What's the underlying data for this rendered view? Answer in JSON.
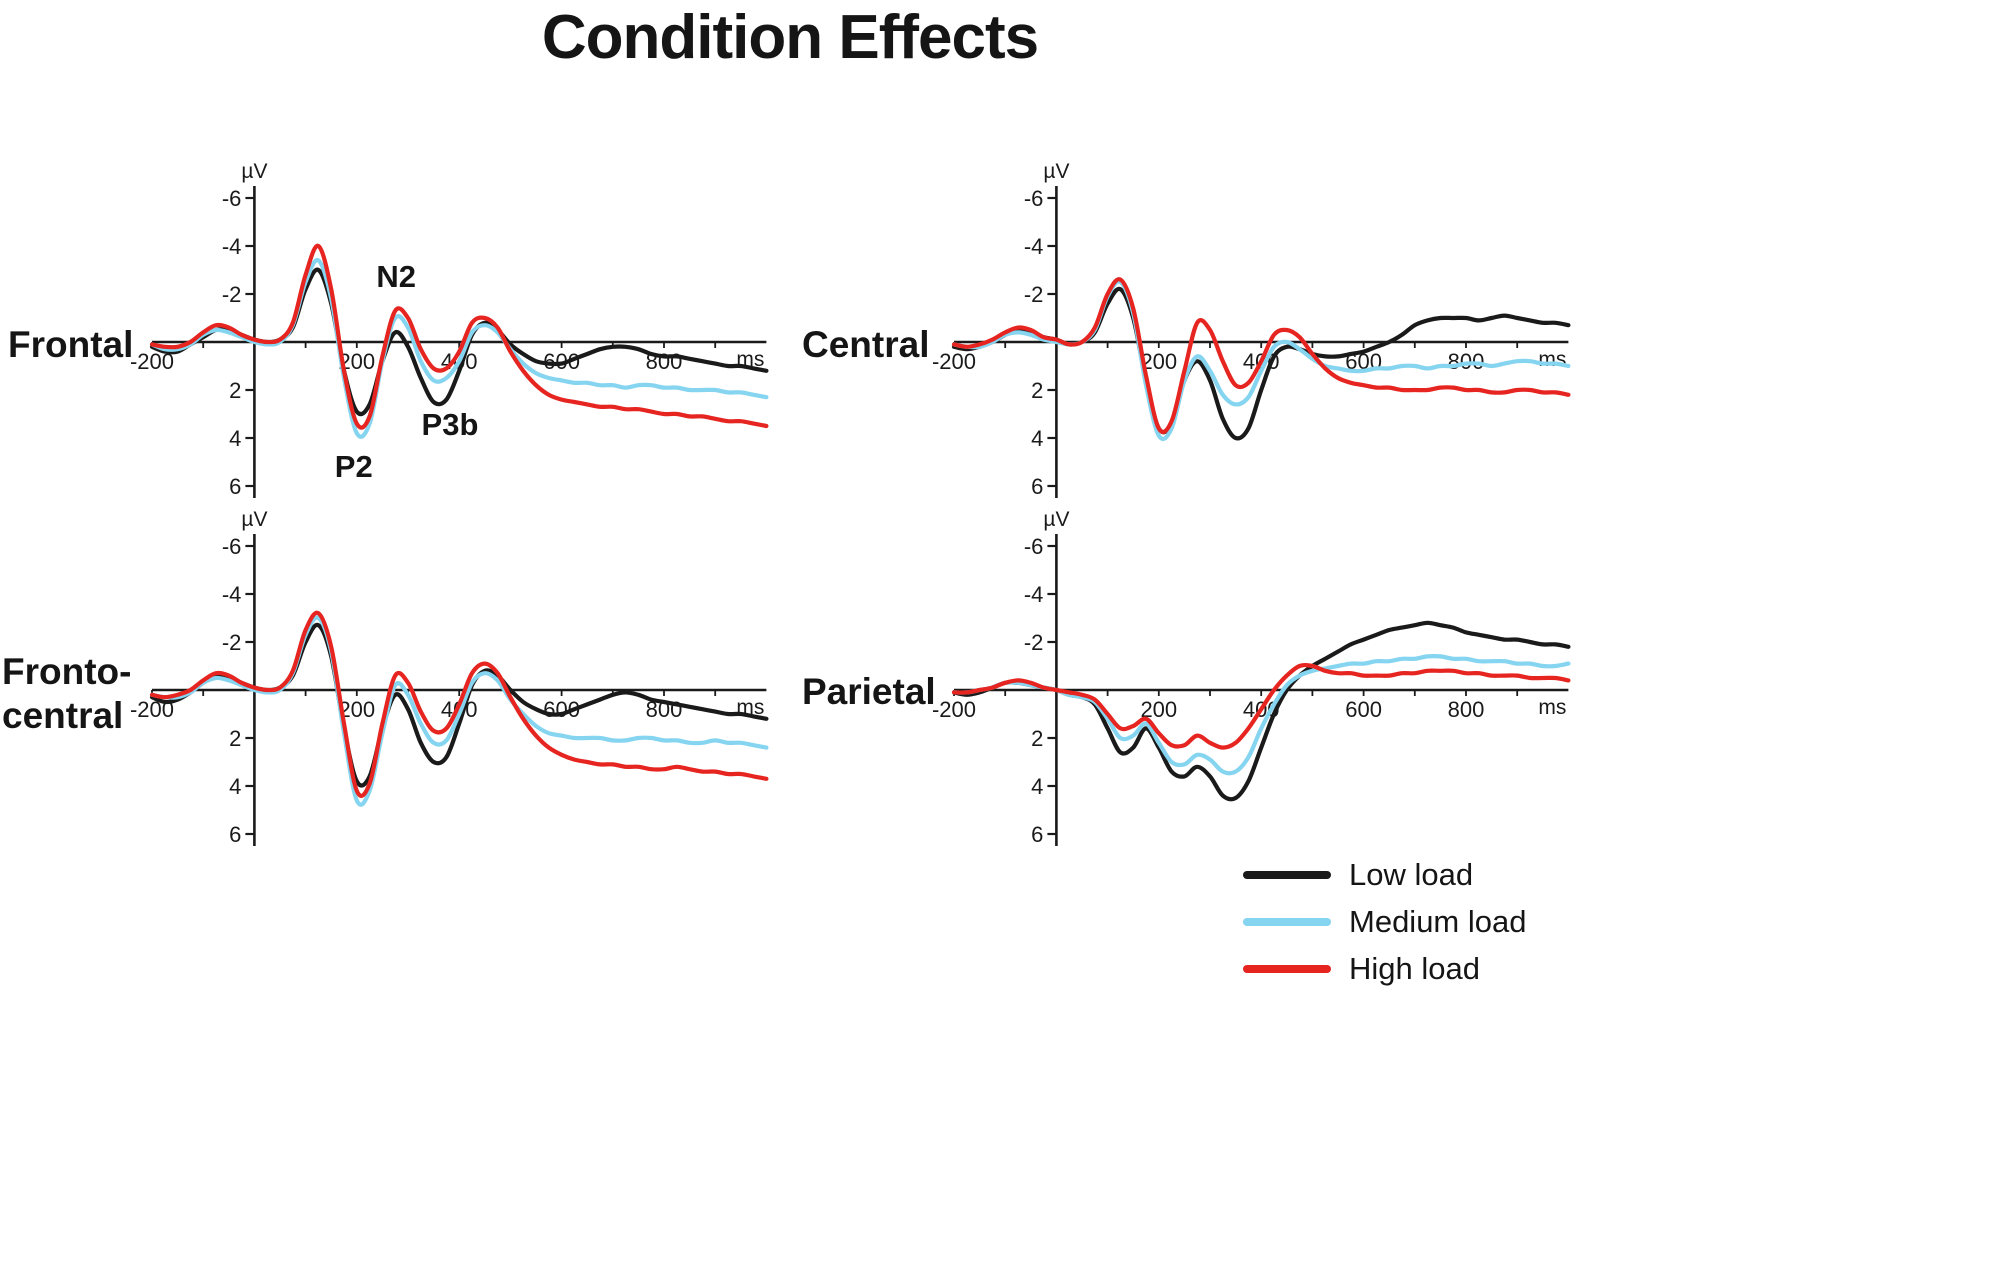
{
  "title": "Condition Effects",
  "axes": {
    "y_unit": "µV",
    "x_unit": "ms",
    "y_ticks": [
      -6,
      -4,
      -2,
      2,
      4,
      6
    ],
    "x_tick_labels": [
      200,
      400,
      600,
      800
    ],
    "x_start_label": "-200",
    "x_min": -200,
    "x_max": 1000,
    "y_min": -6,
    "y_max": 6,
    "y_inverted_note": "negative microvolts plotted upward",
    "axis_color": "#1a1a1a"
  },
  "legend": [
    {
      "label": "Low load",
      "color": "#1a1a1a"
    },
    {
      "label": "Medium load",
      "color": "#85d4f0"
    },
    {
      "label": "High load",
      "color": "#e62420"
    }
  ],
  "chart_data": {
    "type": "line",
    "title": "Condition Effects",
    "x_label": "ms",
    "y_label": "µV",
    "ylim": [
      -6,
      6
    ],
    "xlim": [
      -200,
      1000
    ],
    "grid": false,
    "legend_position": "bottom-right",
    "x_ms": [
      -200,
      -175,
      -150,
      -125,
      -100,
      -75,
      -50,
      -25,
      0,
      25,
      50,
      75,
      100,
      125,
      150,
      175,
      200,
      225,
      250,
      275,
      300,
      325,
      350,
      375,
      400,
      425,
      450,
      475,
      500,
      525,
      550,
      575,
      600,
      625,
      650,
      675,
      700,
      725,
      750,
      775,
      800,
      825,
      850,
      875,
      900,
      925,
      950,
      975,
      1000
    ],
    "panels": [
      {
        "id": "frontal",
        "label": "Frontal",
        "annotations": [
          {
            "text": "N2",
            "ms": 277,
            "uv": -2.7
          },
          {
            "text": "P3b",
            "ms": 382,
            "uv": 3.45
          },
          {
            "text": "P2",
            "ms": 194,
            "uv": 5.2
          }
        ],
        "series": [
          {
            "name": "Low load",
            "color": "#1a1a1a",
            "values": [
              0.2,
              0.4,
              0.4,
              0.1,
              -0.2,
              -0.5,
              -0.5,
              -0.3,
              -0.1,
              0.0,
              -0.1,
              -0.6,
              -2.2,
              -3.0,
              -1.6,
              1.2,
              2.9,
              2.6,
              0.8,
              -0.4,
              0.2,
              1.5,
              2.5,
              2.4,
              1.2,
              -0.3,
              -0.8,
              -0.5,
              0.1,
              0.5,
              0.8,
              0.9,
              0.9,
              0.7,
              0.5,
              0.3,
              0.2,
              0.2,
              0.3,
              0.5,
              0.6,
              0.6,
              0.7,
              0.8,
              0.9,
              1.0,
              1.0,
              1.1,
              1.2
            ]
          },
          {
            "name": "Medium load",
            "color": "#85d4f0",
            "values": [
              0.1,
              0.3,
              0.3,
              0.1,
              -0.3,
              -0.5,
              -0.4,
              -0.2,
              0.0,
              0.1,
              0.0,
              -0.7,
              -2.5,
              -3.4,
              -1.8,
              1.5,
              3.8,
              3.4,
              0.8,
              -1.0,
              -0.6,
              0.8,
              1.6,
              1.5,
              0.8,
              -0.4,
              -0.7,
              -0.4,
              0.3,
              0.9,
              1.3,
              1.5,
              1.6,
              1.7,
              1.7,
              1.8,
              1.8,
              1.9,
              1.8,
              1.8,
              1.9,
              1.9,
              2.0,
              2.0,
              2.0,
              2.1,
              2.1,
              2.2,
              2.3
            ]
          },
          {
            "name": "High load",
            "color": "#e62420",
            "values": [
              0.1,
              0.2,
              0.2,
              0.0,
              -0.4,
              -0.7,
              -0.6,
              -0.3,
              -0.1,
              0.0,
              -0.1,
              -0.8,
              -2.8,
              -4.0,
              -2.2,
              1.2,
              3.4,
              3.1,
              0.6,
              -1.3,
              -1.0,
              0.3,
              1.1,
              1.1,
              0.4,
              -0.8,
              -1.0,
              -0.6,
              0.4,
              1.2,
              1.8,
              2.2,
              2.4,
              2.5,
              2.6,
              2.7,
              2.7,
              2.8,
              2.8,
              2.9,
              3.0,
              3.0,
              3.1,
              3.1,
              3.2,
              3.3,
              3.3,
              3.4,
              3.5
            ]
          }
        ]
      },
      {
        "id": "central",
        "label": "Central",
        "annotations": [],
        "series": [
          {
            "name": "Low load",
            "color": "#1a1a1a",
            "values": [
              0.2,
              0.3,
              0.2,
              0.0,
              -0.3,
              -0.5,
              -0.4,
              -0.2,
              -0.1,
              0.1,
              0.0,
              -0.4,
              -1.6,
              -2.2,
              -1.0,
              1.6,
              3.6,
              3.4,
              1.6,
              0.8,
              1.6,
              3.2,
              4.0,
              3.6,
              2.0,
              0.6,
              0.2,
              0.3,
              0.5,
              0.6,
              0.6,
              0.5,
              0.4,
              0.2,
              0.0,
              -0.3,
              -0.7,
              -0.9,
              -1.0,
              -1.0,
              -1.0,
              -0.9,
              -1.0,
              -1.1,
              -1.0,
              -0.9,
              -0.8,
              -0.8,
              -0.7
            ]
          },
          {
            "name": "Medium load",
            "color": "#85d4f0",
            "values": [
              0.1,
              0.2,
              0.2,
              0.0,
              -0.3,
              -0.4,
              -0.3,
              -0.1,
              0.0,
              0.1,
              0.0,
              -0.5,
              -1.9,
              -2.5,
              -1.2,
              1.8,
              3.9,
              3.6,
              1.6,
              0.6,
              1.2,
              2.2,
              2.6,
              2.3,
              1.2,
              0.2,
              0.0,
              0.3,
              0.7,
              1.0,
              1.1,
              1.2,
              1.2,
              1.1,
              1.1,
              1.0,
              1.0,
              1.1,
              1.0,
              1.0,
              0.9,
              0.9,
              1.0,
              0.9,
              0.8,
              0.8,
              0.9,
              0.9,
              1.0
            ]
          },
          {
            "name": "High load",
            "color": "#e62420",
            "values": [
              0.1,
              0.2,
              0.1,
              -0.1,
              -0.4,
              -0.6,
              -0.5,
              -0.2,
              -0.1,
              0.1,
              0.0,
              -0.6,
              -2.0,
              -2.6,
              -1.4,
              1.4,
              3.6,
              3.3,
              1.2,
              -0.8,
              -0.5,
              0.8,
              1.8,
              1.7,
              0.8,
              -0.3,
              -0.5,
              -0.2,
              0.5,
              1.1,
              1.5,
              1.7,
              1.8,
              1.9,
              1.9,
              2.0,
              2.0,
              2.0,
              1.9,
              1.9,
              2.0,
              2.0,
              2.1,
              2.1,
              2.0,
              2.0,
              2.1,
              2.1,
              2.2
            ]
          }
        ]
      },
      {
        "id": "fronto-central",
        "label": "Fronto-\ncentral",
        "annotations": [],
        "series": [
          {
            "name": "Low load",
            "color": "#1a1a1a",
            "values": [
              0.3,
              0.5,
              0.4,
              0.1,
              -0.3,
              -0.6,
              -0.5,
              -0.3,
              -0.1,
              0.0,
              -0.1,
              -0.6,
              -2.0,
              -2.7,
              -1.4,
              1.6,
              3.8,
              3.6,
              1.6,
              0.2,
              0.8,
              2.2,
              3.0,
              2.8,
              1.4,
              -0.2,
              -0.8,
              -0.6,
              0.0,
              0.5,
              0.8,
              1.0,
              1.0,
              0.8,
              0.6,
              0.4,
              0.2,
              0.1,
              0.2,
              0.4,
              0.5,
              0.6,
              0.7,
              0.8,
              0.9,
              1.0,
              1.0,
              1.1,
              1.2
            ]
          },
          {
            "name": "Medium load",
            "color": "#85d4f0",
            "values": [
              0.2,
              0.3,
              0.3,
              0.1,
              -0.3,
              -0.5,
              -0.4,
              -0.2,
              0.0,
              0.1,
              0.0,
              -0.7,
              -2.3,
              -3.0,
              -1.6,
              1.8,
              4.6,
              4.2,
              1.8,
              -0.2,
              0.2,
              1.4,
              2.2,
              2.1,
              1.0,
              -0.3,
              -0.7,
              -0.4,
              0.4,
              1.0,
              1.5,
              1.8,
              1.9,
              2.0,
              2.0,
              2.0,
              2.1,
              2.1,
              2.0,
              2.0,
              2.1,
              2.1,
              2.2,
              2.2,
              2.1,
              2.2,
              2.2,
              2.3,
              2.4
            ]
          },
          {
            "name": "High load",
            "color": "#e62420",
            "values": [
              0.2,
              0.3,
              0.2,
              0.0,
              -0.4,
              -0.7,
              -0.6,
              -0.3,
              -0.1,
              0.0,
              -0.1,
              -0.8,
              -2.5,
              -3.2,
              -1.8,
              1.4,
              4.2,
              3.9,
              1.4,
              -0.6,
              -0.3,
              0.9,
              1.7,
              1.6,
              0.6,
              -0.7,
              -1.1,
              -0.7,
              0.3,
              1.2,
              1.9,
              2.4,
              2.7,
              2.9,
              3.0,
              3.1,
              3.1,
              3.2,
              3.2,
              3.3,
              3.3,
              3.2,
              3.3,
              3.4,
              3.4,
              3.5,
              3.5,
              3.6,
              3.7
            ]
          }
        ]
      },
      {
        "id": "parietal",
        "label": "Parietal",
        "annotations": [],
        "series": [
          {
            "name": "Low load",
            "color": "#1a1a1a",
            "values": [
              0.1,
              0.2,
              0.1,
              -0.1,
              -0.3,
              -0.3,
              -0.2,
              -0.1,
              0.0,
              0.2,
              0.3,
              0.6,
              1.6,
              2.6,
              2.4,
              1.6,
              2.4,
              3.4,
              3.6,
              3.2,
              3.6,
              4.4,
              4.5,
              3.8,
              2.4,
              1.0,
              0.0,
              -0.6,
              -1.0,
              -1.3,
              -1.6,
              -1.9,
              -2.1,
              -2.3,
              -2.5,
              -2.6,
              -2.7,
              -2.8,
              -2.7,
              -2.6,
              -2.4,
              -2.3,
              -2.2,
              -2.1,
              -2.1,
              -2.0,
              -1.9,
              -1.9,
              -1.8
            ]
          },
          {
            "name": "Medium load",
            "color": "#85d4f0",
            "values": [
              0.1,
              0.1,
              0.0,
              -0.1,
              -0.3,
              -0.3,
              -0.2,
              -0.1,
              0.0,
              0.2,
              0.3,
              0.5,
              1.2,
              2.0,
              1.9,
              1.4,
              2.2,
              3.0,
              3.1,
              2.7,
              2.9,
              3.4,
              3.4,
              2.8,
              1.6,
              0.6,
              -0.2,
              -0.6,
              -0.8,
              -0.9,
              -1.0,
              -1.1,
              -1.1,
              -1.2,
              -1.2,
              -1.3,
              -1.3,
              -1.4,
              -1.4,
              -1.3,
              -1.3,
              -1.2,
              -1.2,
              -1.2,
              -1.1,
              -1.1,
              -1.0,
              -1.0,
              -1.1
            ]
          },
          {
            "name": "High load",
            "color": "#e62420",
            "values": [
              0.1,
              0.1,
              0.0,
              -0.1,
              -0.3,
              -0.4,
              -0.3,
              -0.1,
              0.0,
              0.1,
              0.2,
              0.4,
              1.0,
              1.6,
              1.5,
              1.2,
              1.8,
              2.3,
              2.3,
              1.9,
              2.2,
              2.4,
              2.2,
              1.6,
              0.8,
              0.0,
              -0.6,
              -1.0,
              -1.0,
              -0.8,
              -0.7,
              -0.7,
              -0.6,
              -0.6,
              -0.6,
              -0.7,
              -0.7,
              -0.8,
              -0.8,
              -0.8,
              -0.7,
              -0.7,
              -0.6,
              -0.6,
              -0.6,
              -0.5,
              -0.5,
              -0.5,
              -0.4
            ]
          }
        ]
      }
    ]
  }
}
